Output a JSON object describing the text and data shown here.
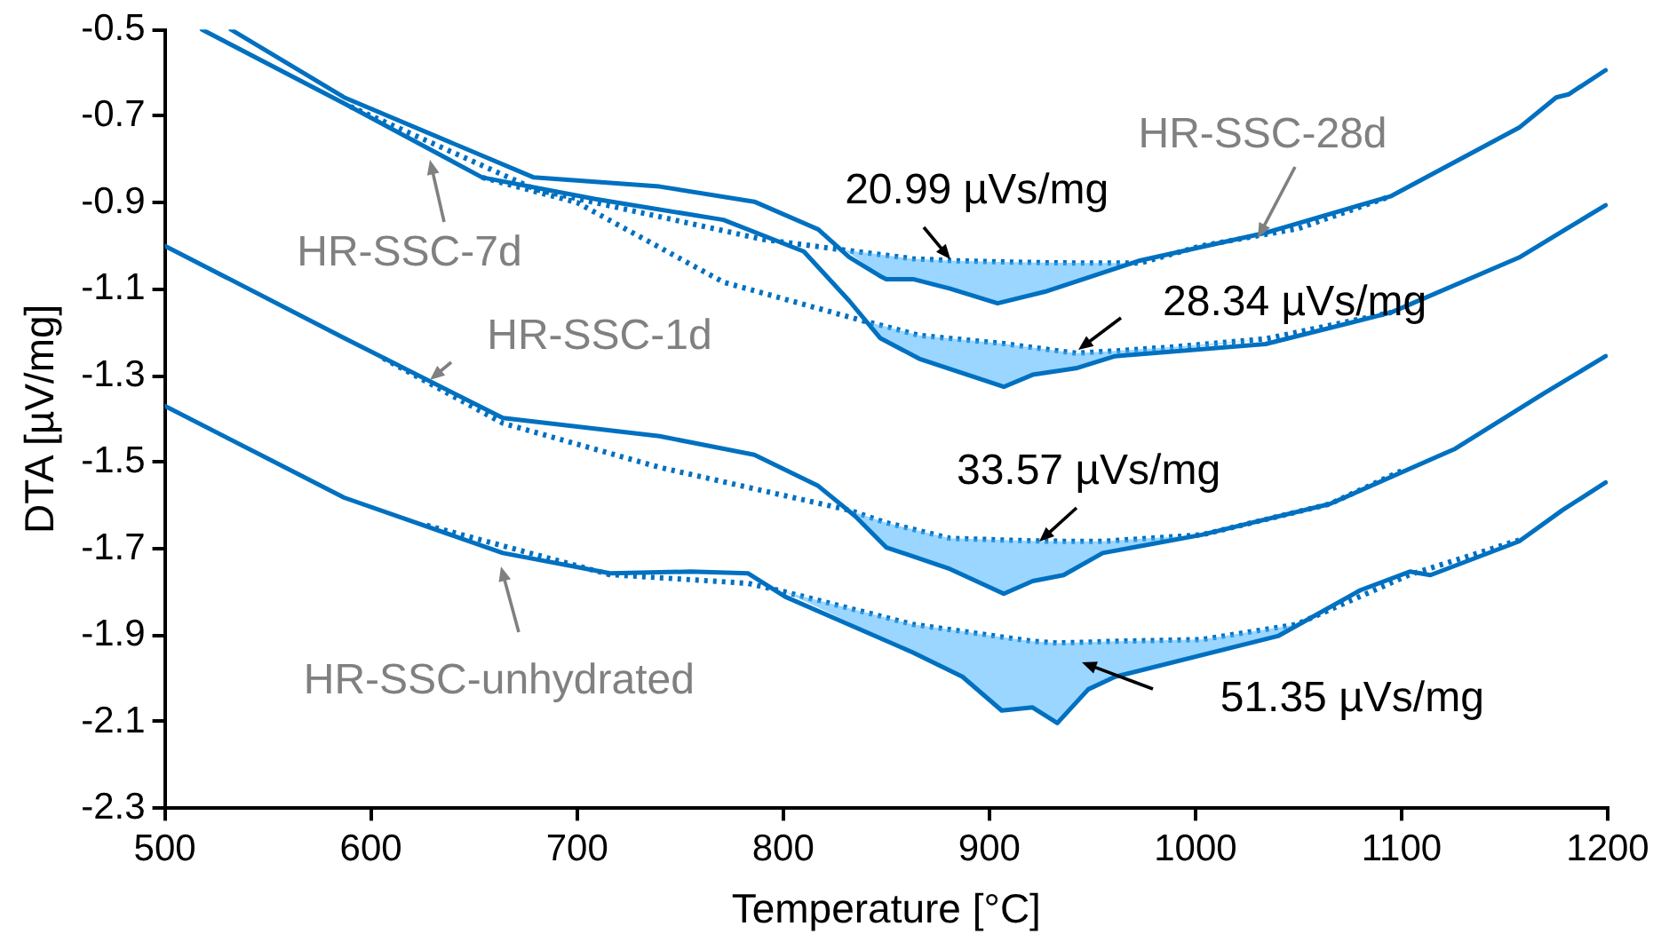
{
  "chart_data": {
    "type": "line",
    "xlabel": "Temperature [°C]",
    "ylabel": "DTA [µV/mg]",
    "xlim": [
      500,
      1200
    ],
    "xticks": [
      500,
      600,
      700,
      800,
      900,
      1000,
      1100,
      1200
    ],
    "ylim": [
      -2.3,
      -0.5
    ],
    "yticks": [
      -2.3,
      -2.1,
      -1.9,
      -1.7,
      -1.5,
      -1.3,
      -1.1,
      -0.9,
      -0.7,
      -0.5
    ],
    "grid": false,
    "legend": false,
    "marker": "none",
    "series": [
      {
        "name": "HR-SSC-28d",
        "color": "#0070c0",
        "line_style": "solid",
        "x": [
          532,
          587,
          679,
          740,
          786,
          817,
          832,
          847,
          850,
          863,
          881,
          904,
          927,
          973,
          1034,
          1095,
          1157,
          1175,
          1181,
          1199
        ],
        "values": [
          -0.5,
          -0.657,
          -0.842,
          -0.863,
          -0.898,
          -0.962,
          -1.026,
          -1.07,
          -1.077,
          -1.077,
          -1.099,
          -1.133,
          -1.106,
          -1.034,
          -0.97,
          -0.885,
          -0.727,
          -0.657,
          -0.65,
          -0.594
        ]
      },
      {
        "color": "#0070c0",
        "line_style": "dotted",
        "x": [
          590,
          680,
          790,
          830,
          850,
          863,
          881,
          904,
          927,
          950,
          973,
          1003,
          1050,
          1095
        ],
        "values": [
          -0.678,
          -0.87,
          -0.985,
          -1.01,
          -1.022,
          -1.03,
          -1.034,
          -1.037,
          -1.039,
          -1.04,
          -1.04,
          -1.0,
          -0.96,
          -0.885
        ],
        "lower": [
          -0.678,
          -0.87,
          -0.985,
          -1.01,
          -1.077,
          -1.077,
          -1.099,
          -1.133,
          -1.106,
          -1.07,
          -1.04,
          -1.0,
          -0.96,
          -0.885
        ],
        "upper": [
          -0.678,
          -0.87,
          -0.985,
          -1.01,
          -1.022,
          -1.03,
          -1.034,
          -1.037,
          -1.039,
          -1.04,
          -1.04,
          -1.0,
          -0.96,
          -0.885
        ]
      },
      {
        "name": "HR-SSC-7d",
        "color": "#0070c0",
        "line_style": "solid",
        "x": [
          518,
          587,
          654,
          709,
          771,
          810,
          832,
          847,
          866,
          907,
          921,
          942,
          961,
          1034,
          1095,
          1157,
          1199
        ],
        "values": [
          -0.5,
          -0.671,
          -0.842,
          -0.892,
          -0.94,
          -1.013,
          -1.127,
          -1.213,
          -1.261,
          -1.326,
          -1.298,
          -1.283,
          -1.255,
          -1.227,
          -1.154,
          -1.027,
          -0.906
        ]
      },
      {
        "color": "#0070c0",
        "line_style": "dotted",
        "x": [
          654,
          700,
          771,
          840,
          847,
          866,
          907,
          921,
          942,
          961,
          988,
          1034,
          1095
        ],
        "values": [
          -0.842,
          -0.9,
          -1.084,
          -1.175,
          -1.183,
          -1.207,
          -1.226,
          -1.235,
          -1.248,
          -1.243,
          -1.234,
          -1.215,
          -1.154
        ],
        "lower": [
          -0.842,
          -0.9,
          -1.084,
          -1.175,
          -1.213,
          -1.261,
          -1.326,
          -1.298,
          -1.283,
          -1.255,
          -1.24,
          -1.215,
          -1.154
        ],
        "upper": [
          -0.842,
          -0.9,
          -1.084,
          -1.175,
          -1.183,
          -1.207,
          -1.226,
          -1.235,
          -1.248,
          -1.243,
          -1.234,
          -1.215,
          -1.154
        ]
      },
      {
        "name": "HR-SSC-1d",
        "color": "#0070c0",
        "line_style": "solid",
        "x": [
          500,
          587,
          664,
          740,
          786,
          817,
          835,
          850,
          881,
          907,
          921,
          936,
          955,
          1003,
          1065,
          1126,
          1169,
          1199
        ],
        "values": [
          -1.0,
          -1.213,
          -1.398,
          -1.44,
          -1.483,
          -1.555,
          -1.625,
          -1.697,
          -1.747,
          -1.804,
          -1.775,
          -1.761,
          -1.71,
          -1.668,
          -1.597,
          -1.469,
          -1.341,
          -1.255
        ]
      },
      {
        "color": "#0070c0",
        "line_style": "dotted",
        "x": [
          606,
          664,
          740,
          832,
          850,
          881,
          907,
          921,
          936,
          955,
          1003,
          1065,
          1100
        ],
        "values": [
          -1.26,
          -1.41,
          -1.512,
          -1.611,
          -1.64,
          -1.676,
          -1.68,
          -1.682,
          -1.683,
          -1.683,
          -1.668,
          -1.597,
          -1.52
        ],
        "lower": [
          -1.26,
          -1.41,
          -1.512,
          -1.611,
          -1.697,
          -1.747,
          -1.804,
          -1.775,
          -1.761,
          -1.71,
          -1.668,
          -1.597,
          -1.52
        ],
        "upper": [
          -1.26,
          -1.41,
          -1.512,
          -1.611,
          -1.64,
          -1.676,
          -1.68,
          -1.682,
          -1.683,
          -1.683,
          -1.668,
          -1.597,
          -1.52
        ]
      },
      {
        "name": "HR-SSC-unhydrated",
        "color": "#0070c0",
        "line_style": "solid",
        "x": [
          500,
          587,
          664,
          716,
          755,
          783,
          801,
          863,
          887,
          906,
          921,
          933,
          948,
          961,
          1040,
          1080,
          1104,
          1114,
          1157,
          1178,
          1199
        ],
        "values": [
          -1.37,
          -1.582,
          -1.71,
          -1.757,
          -1.753,
          -1.757,
          -1.811,
          -1.94,
          -1.996,
          -2.074,
          -2.067,
          -2.103,
          -2.025,
          -1.996,
          -1.902,
          -1.796,
          -1.753,
          -1.761,
          -1.683,
          -1.611,
          -1.547
        ]
      },
      {
        "color": "#0070c0",
        "line_style": "dotted",
        "x": [
          627,
          716,
          783,
          801,
          863,
          887,
          906,
          921,
          933,
          948,
          961,
          1003,
          1040,
          1049,
          1104,
          1157
        ],
        "values": [
          -1.646,
          -1.76,
          -1.78,
          -1.8,
          -1.875,
          -1.891,
          -1.904,
          -1.914,
          -1.918,
          -1.916,
          -1.914,
          -1.91,
          -1.882,
          -1.875,
          -1.76,
          -1.68
        ],
        "lower": [
          -1.646,
          -1.76,
          -1.78,
          -1.8,
          -1.94,
          -1.996,
          -2.074,
          -2.067,
          -2.103,
          -2.025,
          -1.996,
          -1.946,
          -1.902,
          -1.875,
          -1.76,
          -1.68
        ],
        "upper": [
          -1.646,
          -1.76,
          -1.78,
          -1.8,
          -1.875,
          -1.891,
          -1.904,
          -1.914,
          -1.918,
          -1.916,
          -1.914,
          -1.91,
          -1.882,
          -1.875,
          -1.76,
          -1.68
        ]
      }
    ],
    "annotations": [
      {
        "text": "20.99 µVs/mg",
        "x": 881,
        "y": -1.03
      },
      {
        "text": "28.34 µVs/mg",
        "x": 943,
        "y": -1.24
      },
      {
        "text": "33.57 µVs/mg",
        "x": 924,
        "y": -1.684
      },
      "51.35 µVs/mg"
    ]
  }
}
